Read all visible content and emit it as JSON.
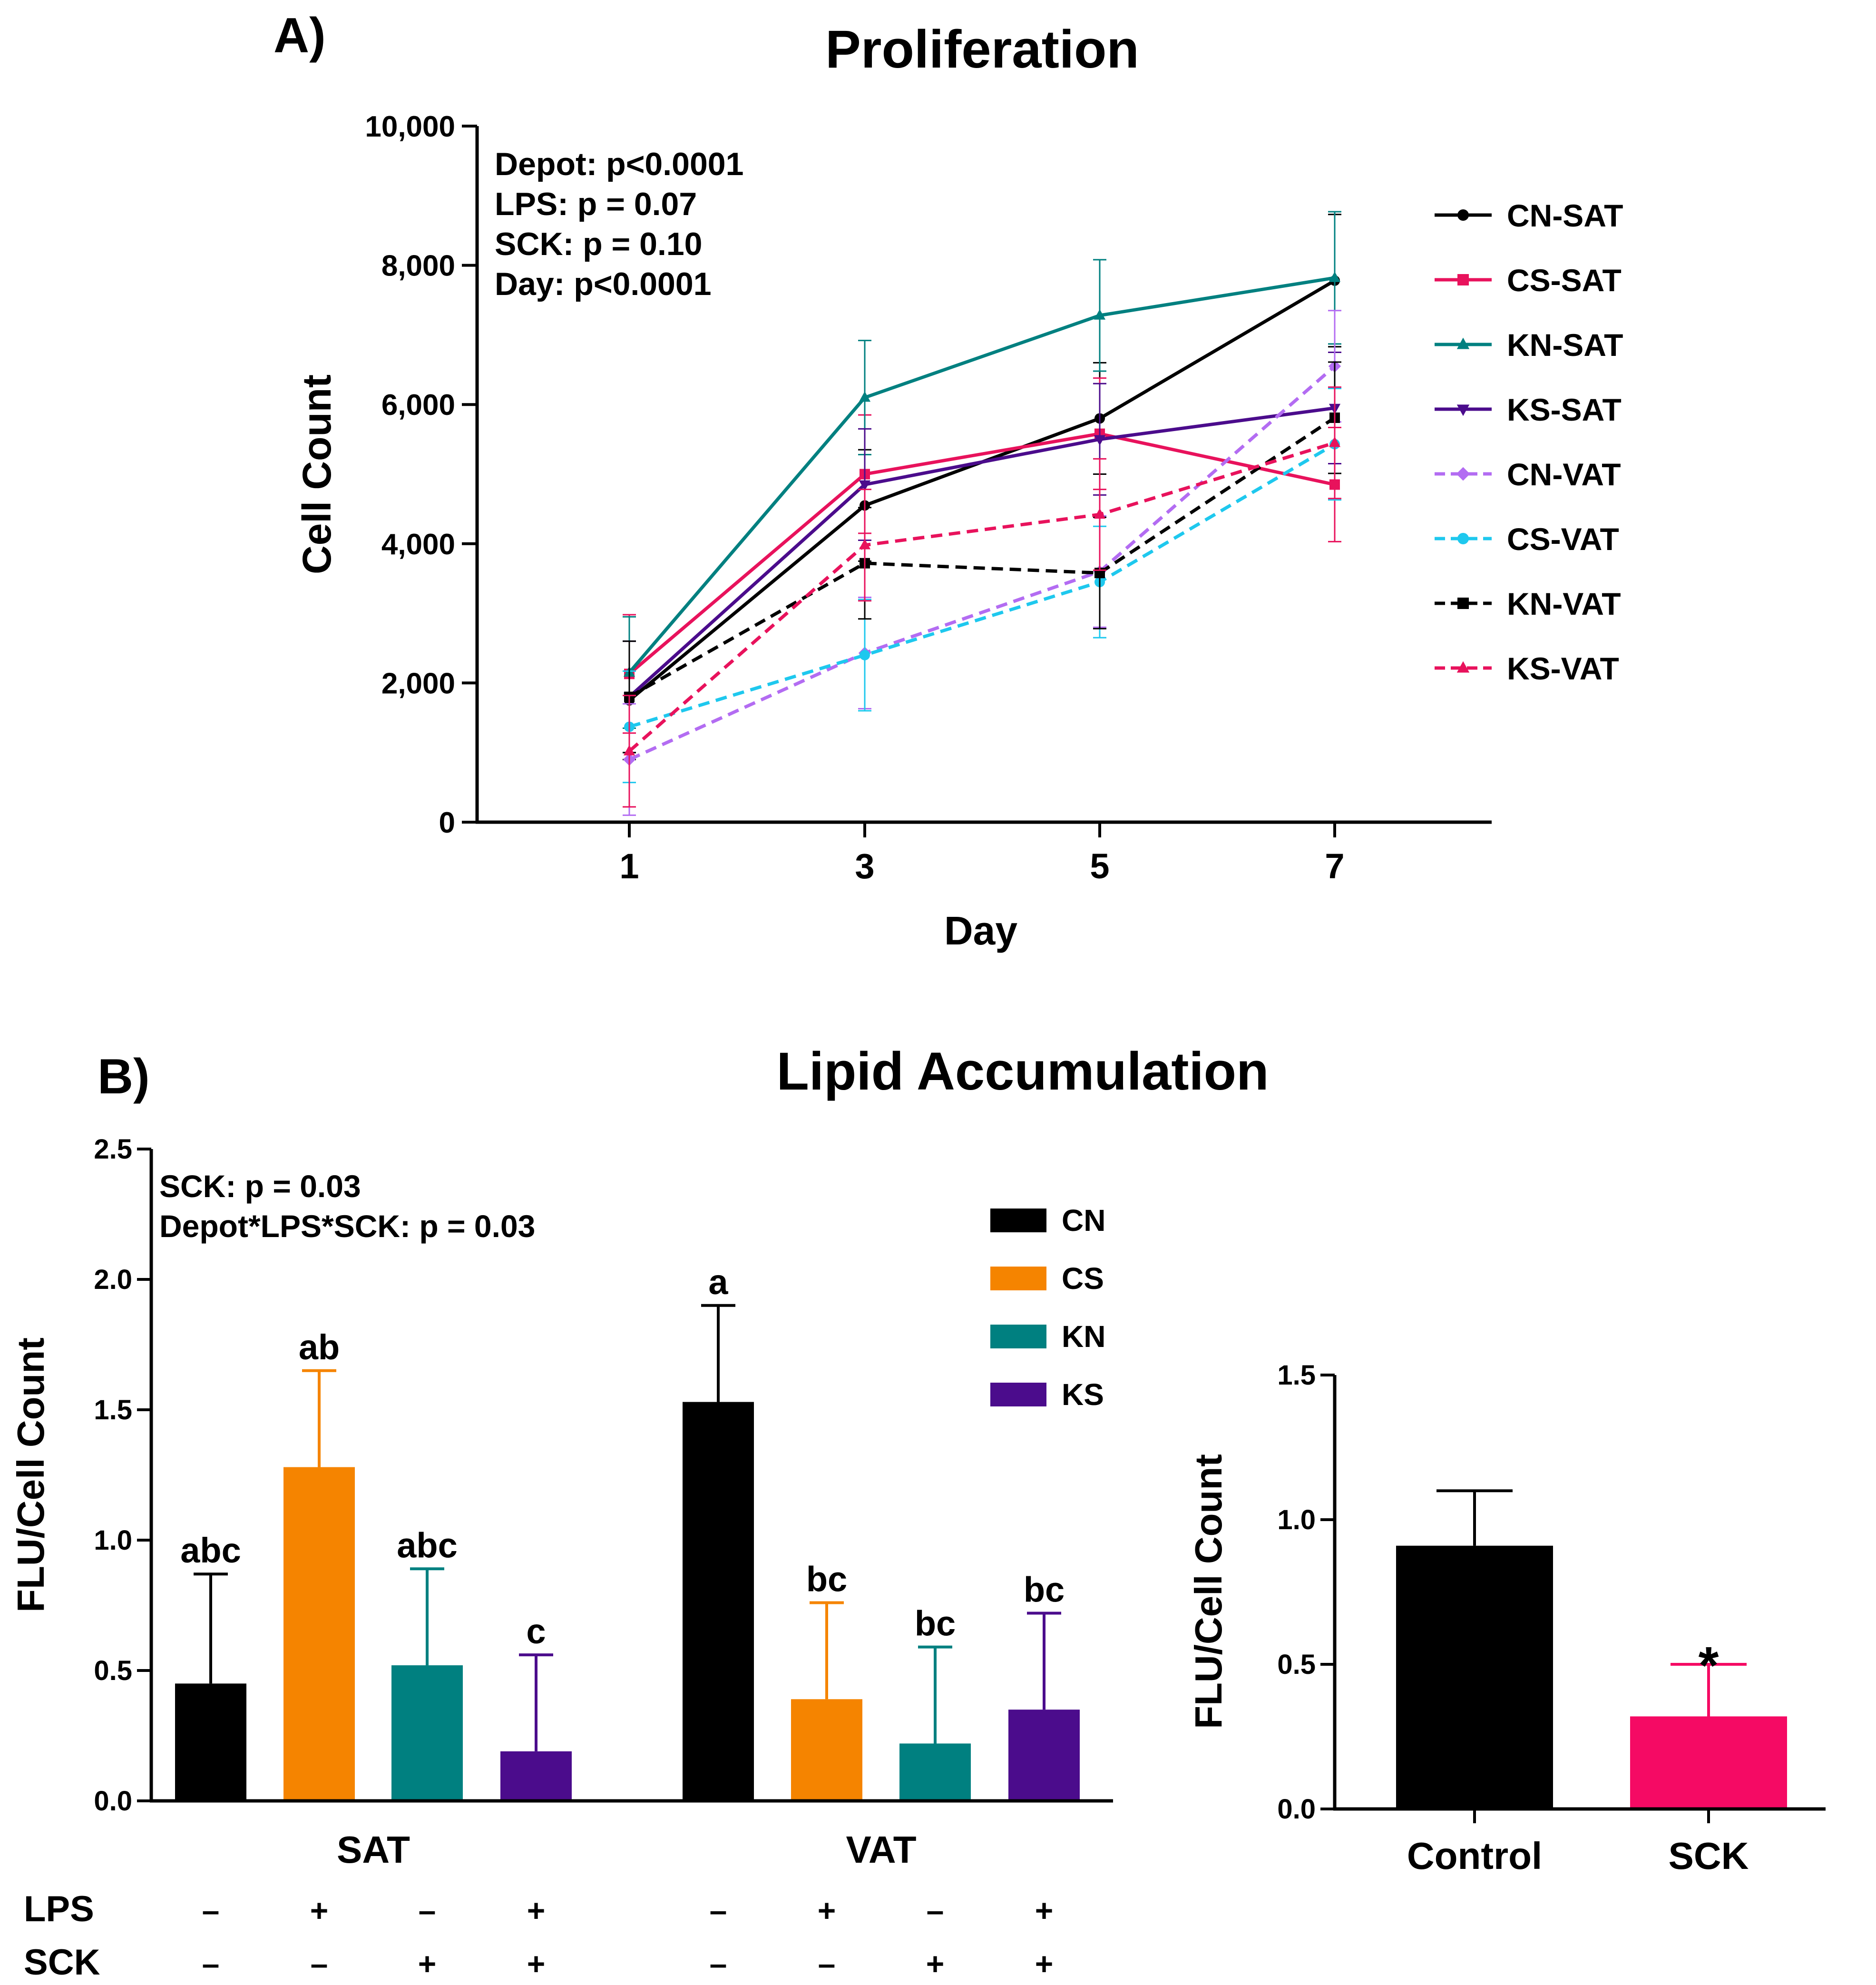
{
  "panel_a_label": "A)",
  "panel_b_label": "B)",
  "chart_data": [
    {
      "type": "line",
      "title": "Proliferation",
      "xlabel": "Day",
      "ylabel": "Cell Count",
      "x": [
        1,
        3,
        5,
        7
      ],
      "x_ticks": [
        "1",
        "3",
        "5",
        "7"
      ],
      "ylim": [
        0,
        10000
      ],
      "y_ticks": [
        "0",
        "2,000",
        "4,000",
        "6,000",
        "8,000",
        "10,000"
      ],
      "y_tick_values": [
        0,
        2000,
        4000,
        6000,
        8000,
        10000
      ],
      "stats": [
        "Depot: p<0.0001",
        "LPS: p = 0.07",
        "SCK: p = 0.10",
        "Day: p<0.0001"
      ],
      "legend_position": "right",
      "series": [
        {
          "name": "CN-SAT",
          "values": [
            1750,
            4550,
            5800,
            7780
          ],
          "errors": [
            850,
            800,
            800,
            950
          ],
          "color": "#000000",
          "dash": false,
          "marker": "circle"
        },
        {
          "name": "CS-SAT",
          "values": [
            2130,
            5000,
            5580,
            4850
          ],
          "errors": [
            850,
            850,
            800,
            820
          ],
          "color": "#e8125c",
          "dash": false,
          "marker": "square"
        },
        {
          "name": "KN-SAT",
          "values": [
            2150,
            6100,
            7280,
            7820
          ],
          "errors": [
            800,
            820,
            800,
            950
          ],
          "color": "#008080",
          "dash": false,
          "marker": "triangle-up"
        },
        {
          "name": "KS-SAT",
          "values": [
            1800,
            4850,
            5500,
            5950
          ],
          "errors": [
            800,
            800,
            800,
            800
          ],
          "color": "#4b0c8c",
          "dash": false,
          "marker": "triangle-down"
        },
        {
          "name": "CN-VAT",
          "values": [
            900,
            2430,
            3600,
            6550
          ],
          "errors": [
            800,
            800,
            800,
            800
          ],
          "color": "#b36cf2",
          "dash": true,
          "marker": "diamond"
        },
        {
          "name": "CS-VAT",
          "values": [
            1370,
            2400,
            3450,
            5430
          ],
          "errors": [
            800,
            800,
            800,
            800
          ],
          "color": "#1ec8ee",
          "dash": true,
          "marker": "circle"
        },
        {
          "name": "KN-VAT",
          "values": [
            1800,
            3720,
            3580,
            5810
          ],
          "errors": [
            800,
            800,
            800,
            800
          ],
          "color": "#000000",
          "dash": true,
          "marker": "square"
        },
        {
          "name": "KS-VAT",
          "values": [
            1020,
            3980,
            4420,
            5450
          ],
          "errors": [
            800,
            800,
            800,
            800
          ],
          "color": "#e8125c",
          "dash": true,
          "marker": "triangle-up"
        }
      ]
    },
    {
      "type": "bar",
      "title": "Lipid Accumulation",
      "ylabel": "FLU/Cell Count",
      "ylim": [
        0,
        2.5
      ],
      "y_ticks": [
        "0.0",
        "0.5",
        "1.0",
        "1.5",
        "2.0",
        "2.5"
      ],
      "y_tick_values": [
        0,
        0.5,
        1.0,
        1.5,
        2.0,
        2.5
      ],
      "stats": [
        "SCK: p = 0.03",
        "Depot*LPS*SCK: p = 0.03"
      ],
      "legend": [
        {
          "name": "CN",
          "color": "#000000"
        },
        {
          "name": "CS",
          "color": "#f58400"
        },
        {
          "name": "KN",
          "color": "#008080"
        },
        {
          "name": "KS",
          "color": "#4b0c8c"
        }
      ],
      "legend_position": "top-center",
      "groups": [
        {
          "name": "SAT",
          "values": [
            0.45,
            1.28,
            0.52,
            0.19
          ],
          "errors": [
            0.42,
            0.37,
            0.37,
            0.37
          ],
          "letters": [
            "abc",
            "ab",
            "abc",
            "c"
          ]
        },
        {
          "name": "VAT",
          "values": [
            1.53,
            0.39,
            0.22,
            0.35
          ],
          "errors": [
            0.37,
            0.37,
            0.37,
            0.37
          ],
          "letters": [
            "a",
            "bc",
            "bc",
            "bc"
          ]
        }
      ],
      "treatment_rows": [
        {
          "label": "LPS",
          "signs": [
            "–",
            "+",
            "–",
            "+",
            "–",
            "+",
            "–",
            "+"
          ]
        },
        {
          "label": "SCK",
          "signs": [
            "–",
            "–",
            "+",
            "+",
            "–",
            "–",
            "+",
            "+"
          ]
        }
      ]
    },
    {
      "type": "bar",
      "ylabel": "FLU/Cell Count",
      "ylim": [
        0,
        1.5
      ],
      "y_ticks": [
        "0.0",
        "0.5",
        "1.0",
        "1.5"
      ],
      "y_tick_values": [
        0,
        0.5,
        1.0,
        1.5
      ],
      "categories": [
        "Control",
        "SCK"
      ],
      "values": [
        0.91,
        0.32
      ],
      "errors": [
        0.19,
        0.18
      ],
      "colors": [
        "#000000",
        "#f50a64"
      ],
      "annotations": [
        "",
        "*"
      ]
    }
  ]
}
